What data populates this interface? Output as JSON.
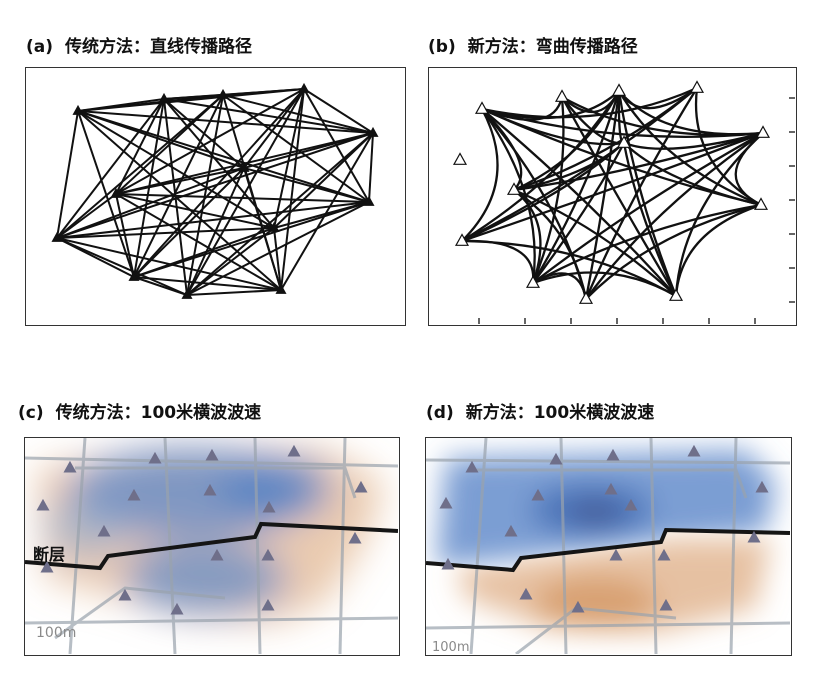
{
  "panels": {
    "a": {
      "label": "(a)",
      "title": "传统方法：直线传播路径"
    },
    "b": {
      "label": "(b)",
      "title": "新方法：弯曲传播路径"
    },
    "c": {
      "label": "(c)",
      "title": "传统方法：100米横波波速",
      "scale": "100m",
      "fault_label": "断层"
    },
    "d": {
      "label": "(d)",
      "title": "新方法：100米横波波速",
      "scale": "100m"
    }
  },
  "colors": {
    "station": "#6f6f8a",
    "slow": "#d9a070",
    "fast": "#5b86c8",
    "road": "#9aa3ad",
    "fault": "#151515"
  }
}
